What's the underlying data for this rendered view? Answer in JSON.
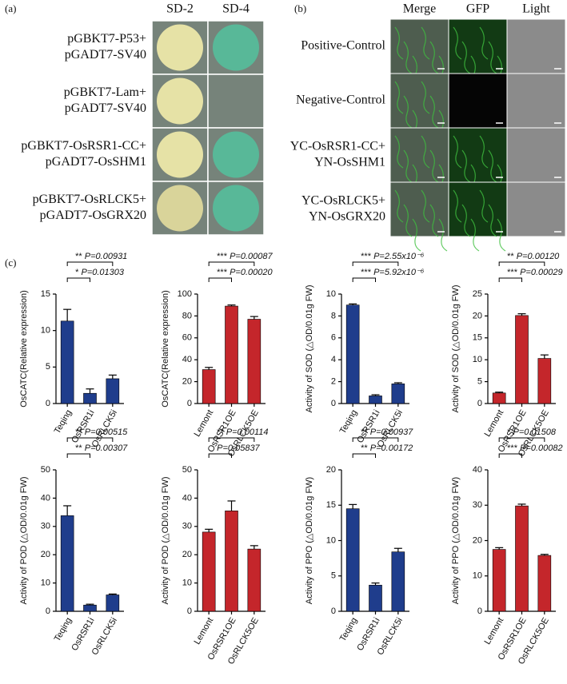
{
  "panel_a": {
    "label": "(a)",
    "columns": [
      "SD-2",
      "SD-4"
    ],
    "rows": [
      [
        "pGBKT7-P53+",
        "pGADT7-SV40"
      ],
      [
        "pGBKT7-Lam+",
        "pGADT7-SV40"
      ],
      [
        "pGBKT7-OsRSR1-CC+",
        "pGADT7-OsSHM1"
      ],
      [
        "pGBKT7-OsRLCK5+",
        "pGADT7-OsGRX20"
      ]
    ]
  },
  "panel_b": {
    "label": "(b)",
    "columns": [
      "Merge",
      "GFP",
      "Light"
    ],
    "rows": [
      [
        "Positive-Control"
      ],
      [
        "Negative-Control"
      ],
      [
        "YC-OsRSR1-CC+",
        "YN-OsSHM1"
      ],
      [
        "YC-OsRLCK5+",
        "YN-OsGRX20"
      ]
    ]
  },
  "panel_c": {
    "label": "(c)"
  },
  "chart_data": [
    {
      "type": "bar",
      "y_label": "OsCATC(Relative expression)",
      "categories": [
        "Teqing",
        "OsRSR1i",
        "OsRLCK5i"
      ],
      "values": [
        11.3,
        1.4,
        3.4
      ],
      "errors": [
        1.6,
        0.6,
        0.5
      ],
      "color": "#1f3d8c",
      "ylim": [
        0,
        15
      ],
      "yticks": [
        0,
        5,
        10,
        15
      ],
      "annotations": [
        {
          "stars": "*",
          "p": "P=0.01303"
        },
        {
          "stars": "**",
          "p": "P=0.00931"
        }
      ]
    },
    {
      "type": "bar",
      "y_label": "OsCATC(Relative expression)",
      "categories": [
        "Lemont",
        "OsRSR1OE",
        "OsRLCK5OE"
      ],
      "values": [
        31,
        89,
        77
      ],
      "errors": [
        2,
        1,
        2.5
      ],
      "color": "#c4262b",
      "ylim": [
        0,
        100
      ],
      "yticks": [
        0,
        20,
        40,
        60,
        80,
        100
      ],
      "annotations": [
        {
          "stars": "***",
          "p": "P=0.00020"
        },
        {
          "stars": "***",
          "p": "P=0.00087"
        }
      ]
    },
    {
      "type": "bar",
      "y_label": "Activity of SOD (△OD/0.01g FW)",
      "categories": [
        "Teqing",
        "OsRSR1i",
        "OsRLCK5i"
      ],
      "values": [
        9.0,
        0.7,
        1.8
      ],
      "errors": [
        0.1,
        0.1,
        0.1
      ],
      "color": "#1f3d8c",
      "ylim": [
        0,
        10
      ],
      "yticks": [
        0,
        2,
        4,
        6,
        8,
        10
      ],
      "annotations": [
        {
          "stars": "***",
          "p": "P=5.92x10⁻⁶"
        },
        {
          "stars": "***",
          "p": "P=2.55x10⁻⁶"
        }
      ]
    },
    {
      "type": "bar",
      "y_label": "Activity of SOD (△OD/0.01g FW)",
      "categories": [
        "Lemont",
        "OsRSR1OE",
        "OsRLCK5OE"
      ],
      "values": [
        2.4,
        20.1,
        10.3
      ],
      "errors": [
        0.2,
        0.4,
        0.8
      ],
      "color": "#c4262b",
      "ylim": [
        0,
        25
      ],
      "yticks": [
        0,
        5,
        10,
        15,
        20,
        25
      ],
      "annotations": [
        {
          "stars": "***",
          "p": "P=0.00029"
        },
        {
          "stars": "**",
          "p": "P=0.00120"
        }
      ]
    },
    {
      "type": "bar",
      "y_label": "Activity of POD (△OD/0.01g FW)",
      "categories": [
        "Teqing",
        "OsRSR1i",
        "OsRLCK5i"
      ],
      "values": [
        33.8,
        2.2,
        5.8
      ],
      "errors": [
        3.5,
        0.3,
        0.3
      ],
      "color": "#1f3d8c",
      "ylim": [
        0,
        50
      ],
      "yticks": [
        0,
        10,
        20,
        30,
        40,
        50
      ],
      "annotations": [
        {
          "stars": "**",
          "p": "P=0.00307"
        },
        {
          "stars": "**",
          "p": "P=0.00515"
        }
      ]
    },
    {
      "type": "bar",
      "y_label": "Activity of POD (△OD/0.01g FW)",
      "categories": [
        "Lemont",
        "OsRSR1OE",
        "OsRLCK5OE"
      ],
      "values": [
        28,
        35.5,
        22
      ],
      "errors": [
        1,
        3.5,
        1.2
      ],
      "color": "#c4262b",
      "ylim": [
        0,
        50
      ],
      "yticks": [
        0,
        10,
        20,
        30,
        40,
        50
      ],
      "annotations": [
        {
          "p": "P=0.05837"
        },
        {
          "stars": "**",
          "p": "P=0.00114"
        }
      ]
    },
    {
      "type": "bar",
      "y_label": "Activity of PPO (△OD/0.01g FW)",
      "categories": [
        "Teqing",
        "OsRSR1i",
        "OsRLCK5i"
      ],
      "values": [
        14.5,
        3.7,
        8.4
      ],
      "errors": [
        0.6,
        0.3,
        0.5
      ],
      "color": "#1f3d8c",
      "ylim": [
        0,
        20
      ],
      "yticks": [
        0,
        5,
        10,
        15,
        20
      ],
      "annotations": [
        {
          "stars": "**",
          "p": "P=0.00172"
        },
        {
          "stars": "**",
          "p": "P=0.00937"
        }
      ]
    },
    {
      "type": "bar",
      "y_label": "Activity of PPO (△OD/0.01g FW)",
      "categories": [
        "Lemont",
        "OsRSR1OE",
        "OsRLCK5OE"
      ],
      "values": [
        17.5,
        29.8,
        15.8
      ],
      "errors": [
        0.5,
        0.5,
        0.3
      ],
      "color": "#c4262b",
      "ylim": [
        0,
        40
      ],
      "yticks": [
        0,
        10,
        20,
        30,
        40
      ],
      "annotations": [
        {
          "stars": "***",
          "p": "P=0.00082"
        },
        {
          "stars": "*",
          "p": "P=0.01508"
        }
      ]
    }
  ]
}
